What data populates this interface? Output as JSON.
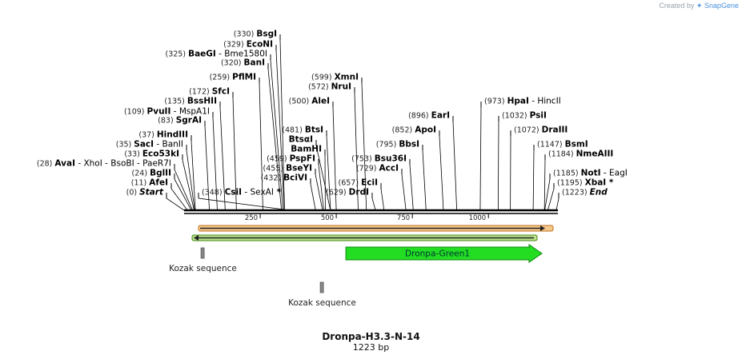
{
  "credit": {
    "prefix": "Created by",
    "brand": "SnapGene",
    "icon": "snapgene-logo-icon"
  },
  "plasmid": {
    "name": "Dronpa-H3.3-N-14",
    "length_label": "1223 bp",
    "length": 1223
  },
  "ruler": {
    "ticks": [
      250,
      500,
      750,
      1000
    ]
  },
  "sites": [
    {
      "pos": 330,
      "pos_label": "(330)",
      "parts": [
        {
          "t": "BsgI"
        }
      ]
    },
    {
      "pos": 329,
      "pos_label": "(329)",
      "parts": [
        {
          "t": "EcoNI"
        }
      ]
    },
    {
      "pos": 325,
      "pos_label": "(325)",
      "parts": [
        {
          "t": "BaeGI"
        },
        {
          "t": " - Bme1580I"
        }
      ]
    },
    {
      "pos": 320,
      "pos_label": "(320)",
      "parts": [
        {
          "t": "BanI"
        }
      ]
    },
    {
      "pos": 259,
      "pos_label": "(259)",
      "parts": [
        {
          "t": "PflMI"
        }
      ]
    },
    {
      "pos": 172,
      "pos_label": "(172)",
      "parts": [
        {
          "t": "SfcI"
        }
      ]
    },
    {
      "pos": 135,
      "pos_label": "(135)",
      "parts": [
        {
          "t": "BssHII"
        }
      ]
    },
    {
      "pos": 109,
      "pos_label": "(109)",
      "parts": [
        {
          "t": "PvuII"
        },
        {
          "t": " - MspA1I"
        }
      ]
    },
    {
      "pos": 83,
      "pos_label": "(83)",
      "parts": [
        {
          "t": "SgrAI"
        }
      ]
    },
    {
      "pos": 37,
      "pos_label": "(37)",
      "parts": [
        {
          "t": "HindIII"
        }
      ]
    },
    {
      "pos": 35,
      "pos_label": "(35)",
      "parts": [
        {
          "t": "SacI"
        },
        {
          "t": " - BanII"
        }
      ]
    },
    {
      "pos": 33,
      "pos_label": "(33)",
      "parts": [
        {
          "t": "Eco53kI"
        }
      ]
    },
    {
      "pos": 28,
      "pos_label": "(28)",
      "parts": [
        {
          "t": "AvaI"
        },
        {
          "t": " - XhoI"
        },
        {
          "t": " - BsoBI"
        },
        {
          "t": " - PaeR7I"
        }
      ]
    },
    {
      "pos": 24,
      "pos_label": "(24)",
      "parts": [
        {
          "t": "BglII"
        }
      ]
    },
    {
      "pos": 11,
      "pos_label": "(11)",
      "parts": [
        {
          "t": "AfeI"
        }
      ]
    },
    {
      "pos": 0,
      "pos_label": "(0)",
      "parts": [
        {
          "t": "Start",
          "i": true
        }
      ]
    },
    {
      "pos": 348,
      "pos_label": "(348)",
      "parts": [
        {
          "t": "CsiI"
        },
        {
          "t": " - SexAI"
        },
        {
          "t": " *"
        }
      ]
    },
    {
      "pos": 599,
      "pos_label": "(599)",
      "parts": [
        {
          "t": "XmnI"
        }
      ]
    },
    {
      "pos": 572,
      "pos_label": "(572)",
      "parts": [
        {
          "t": "NruI"
        }
      ]
    },
    {
      "pos": 500,
      "pos_label": "(500)",
      "parts": [
        {
          "t": "AleI"
        }
      ]
    },
    {
      "pos": 481,
      "pos_label": "(481)",
      "parts": [
        {
          "t": "BtsI"
        }
      ]
    },
    {
      "pos": 481,
      "pos_label": "",
      "parts": [
        {
          "t": "BtsαI"
        }
      ]
    },
    {
      "pos": 464,
      "pos_label": "",
      "parts": [
        {
          "t": "BamHI"
        }
      ]
    },
    {
      "pos": 459,
      "pos_label": "(459)",
      "parts": [
        {
          "t": "PspFI"
        }
      ]
    },
    {
      "pos": 455,
      "pos_label": "(455)",
      "parts": [
        {
          "t": "BseYI"
        }
      ]
    },
    {
      "pos": 432,
      "pos_label": "(432)",
      "parts": [
        {
          "t": "BciVI"
        }
      ]
    },
    {
      "pos": 753,
      "pos_label": "(753)",
      "parts": [
        {
          "t": "Bsu36I"
        }
      ]
    },
    {
      "pos": 729,
      "pos_label": "(729)",
      "parts": [
        {
          "t": "AccI"
        }
      ]
    },
    {
      "pos": 657,
      "pos_label": "(657)",
      "parts": [
        {
          "t": "EciI"
        }
      ]
    },
    {
      "pos": 629,
      "pos_label": "(629)",
      "parts": [
        {
          "t": "DrdI"
        }
      ]
    },
    {
      "pos": 896,
      "pos_label": "(896)",
      "parts": [
        {
          "t": "EarI"
        }
      ]
    },
    {
      "pos": 852,
      "pos_label": "(852)",
      "parts": [
        {
          "t": "ApoI"
        }
      ]
    },
    {
      "pos": 795,
      "pos_label": "(795)",
      "parts": [
        {
          "t": "BbsI"
        }
      ]
    },
    {
      "pos": 973,
      "pos_label": "(973)",
      "parts": [
        {
          "t": "HpaI"
        },
        {
          "t": " - HincII"
        }
      ]
    },
    {
      "pos": 1032,
      "pos_label": "(1032)",
      "parts": [
        {
          "t": "PsiI"
        }
      ]
    },
    {
      "pos": 1072,
      "pos_label": "(1072)",
      "parts": [
        {
          "t": "DraIII"
        }
      ]
    },
    {
      "pos": 1147,
      "pos_label": "(1147)",
      "parts": [
        {
          "t": "BsmI"
        }
      ]
    },
    {
      "pos": 1184,
      "pos_label": "(1184)",
      "parts": [
        {
          "t": "NmeAIII"
        }
      ]
    },
    {
      "pos": 1185,
      "pos_label": "(1185)",
      "parts": [
        {
          "t": "NotI"
        },
        {
          "t": " - EagI"
        }
      ]
    },
    {
      "pos": 1195,
      "pos_label": "(1195)",
      "parts": [
        {
          "t": "XbaI"
        },
        {
          "t": " *"
        }
      ]
    },
    {
      "pos": 1223,
      "pos_label": "(1223)",
      "parts": [
        {
          "t": "End",
          "i": true
        }
      ]
    }
  ],
  "features": [
    {
      "name": "forward-primer-bar",
      "start": 0,
      "end": 1223,
      "strand": "forward",
      "fill": "#f5c98a",
      "stroke": "#c07020"
    },
    {
      "name": "reverse-primer-bar",
      "start": 0,
      "end": 1223,
      "strand": "reverse",
      "fill": "#b8e08a",
      "stroke": "#4a8a1a"
    },
    {
      "name": "dronpa-green1",
      "label": "Dronpa-Green1",
      "start": 500,
      "end": 1223,
      "fill": "#22dd22",
      "stroke": "#118811"
    }
  ],
  "kozak": [
    {
      "label": "Kozak sequence",
      "pos": 24
    },
    {
      "label": "Kozak sequence",
      "pos": 500
    }
  ],
  "colors": {
    "line": "#000000",
    "axis": "#222222"
  }
}
